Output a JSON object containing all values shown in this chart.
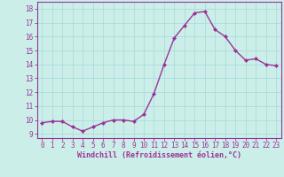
{
  "x": [
    0,
    1,
    2,
    3,
    4,
    5,
    6,
    7,
    8,
    9,
    10,
    11,
    12,
    13,
    14,
    15,
    16,
    17,
    18,
    19,
    20,
    21,
    22,
    23
  ],
  "y": [
    9.8,
    9.9,
    9.9,
    9.5,
    9.2,
    9.5,
    9.8,
    10.0,
    10.0,
    9.9,
    10.4,
    11.9,
    14.0,
    15.9,
    16.8,
    17.7,
    17.8,
    16.5,
    16.0,
    15.0,
    14.3,
    14.4,
    14.0,
    13.9
  ],
  "line_color": "#993399",
  "marker": "D",
  "marker_size": 2,
  "linewidth": 1.0,
  "bg_color": "#cceee8",
  "grid_color": "#aadddd",
  "xlabel": "Windchill (Refroidissement éolien,°C)",
  "xlabel_color": "#993399",
  "ylabel_ticks": [
    9,
    10,
    11,
    12,
    13,
    14,
    15,
    16,
    17,
    18
  ],
  "xlim": [
    -0.5,
    23.5
  ],
  "ylim": [
    8.7,
    18.5
  ],
  "tick_color": "#993399",
  "spine_color": "#993399",
  "tick_fontsize": 5.5,
  "xlabel_fontsize": 6.0
}
